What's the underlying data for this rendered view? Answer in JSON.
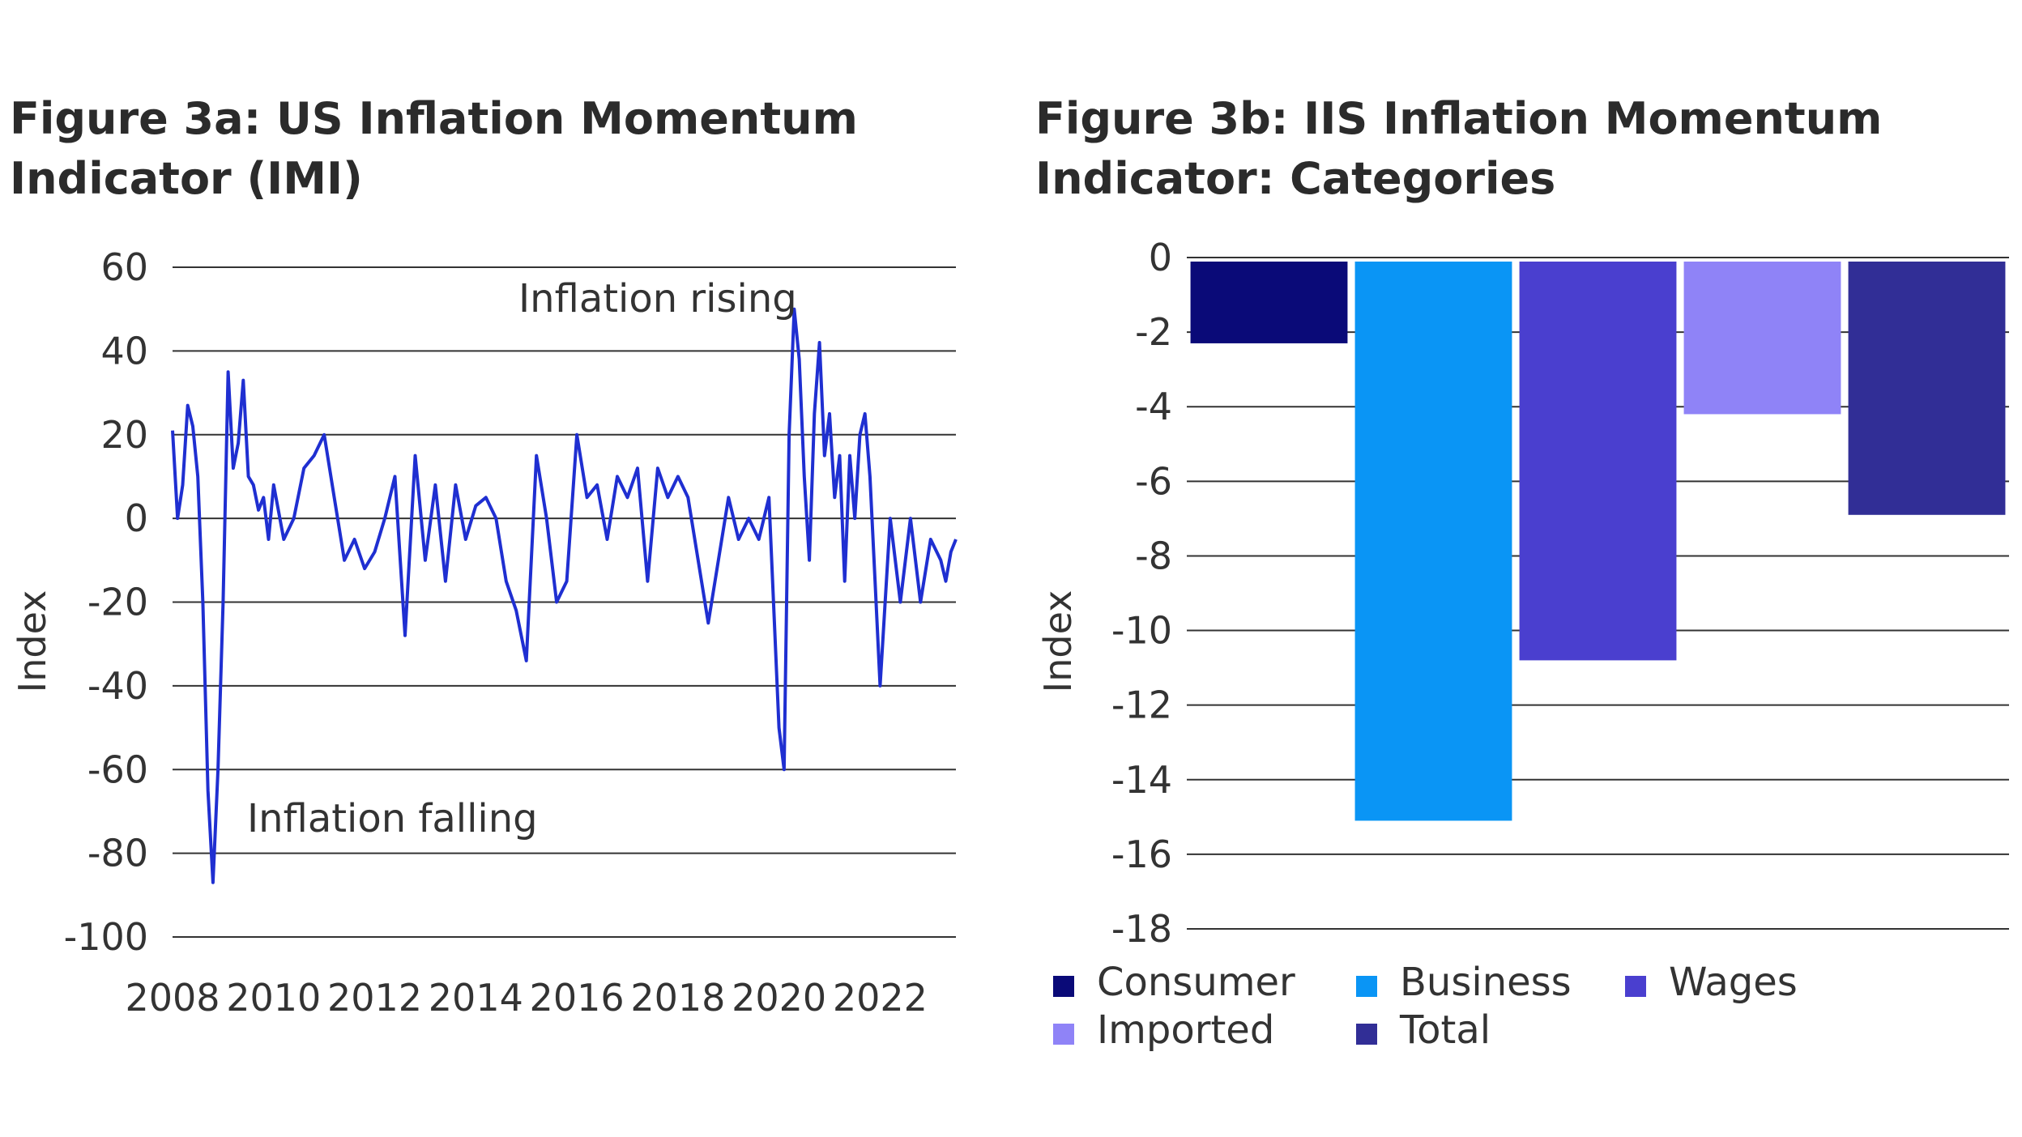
{
  "figure_a": {
    "title_line1": "Figure 3a: US Inflation Momentum",
    "title_line2": "Indicator (IMI)"
  },
  "figure_b": {
    "title_line1": "Figure 3b: IIS Inflation Momentum",
    "title_line2": "Indicator: Categories"
  },
  "chart_data": [
    {
      "type": "line",
      "title": "Figure 3a: US Inflation Momentum Indicator (IMI)",
      "ylabel": "Index",
      "xlabel": "",
      "ylim": [
        -100,
        60
      ],
      "xlim": [
        2008,
        2023.5
      ],
      "yticks": [
        "60",
        "40",
        "20",
        "0",
        "-20",
        "-40",
        "-60",
        "-80",
        "-100"
      ],
      "xticks": [
        "2008",
        "2010",
        "2012",
        "2014",
        "2016",
        "2018",
        "2020",
        "2022"
      ],
      "grid": "horizontal",
      "line_color": "#1f2fd1",
      "annotations": [
        "Inflation rising",
        "Inflation falling"
      ],
      "series": [
        {
          "x": [
            2008.0,
            2008.1,
            2008.2,
            2008.3,
            2008.4,
            2008.5,
            2008.6,
            2008.7,
            2008.8,
            2008.9,
            2009.0,
            2009.1,
            2009.2,
            2009.3,
            2009.4,
            2009.5,
            2009.6,
            2009.7,
            2009.8,
            2009.9,
            2010.0,
            2010.2,
            2010.4,
            2010.6,
            2010.8,
            2011.0,
            2011.2,
            2011.4,
            2011.6,
            2011.8,
            2012.0,
            2012.2,
            2012.4,
            2012.6,
            2012.8,
            2013.0,
            2013.2,
            2013.4,
            2013.6,
            2013.8,
            2014.0,
            2014.2,
            2014.4,
            2014.6,
            2014.8,
            2015.0,
            2015.2,
            2015.4,
            2015.6,
            2015.8,
            2016.0,
            2016.2,
            2016.4,
            2016.6,
            2016.8,
            2017.0,
            2017.2,
            2017.4,
            2017.6,
            2017.8,
            2018.0,
            2018.2,
            2018.4,
            2018.6,
            2018.8,
            2019.0,
            2019.2,
            2019.4,
            2019.6,
            2019.8,
            2020.0,
            2020.1,
            2020.2,
            2020.3,
            2020.4,
            2020.5,
            2020.6,
            2020.7,
            2020.8,
            2020.9,
            2021.0,
            2021.1,
            2021.2,
            2021.3,
            2021.4,
            2021.5,
            2021.6,
            2021.7,
            2021.8,
            2021.9,
            2022.0,
            2022.2,
            2022.4,
            2022.6,
            2022.8,
            2023.0,
            2023.2,
            2023.3,
            2023.4,
            2023.5
          ],
          "y": [
            21,
            0,
            8,
            27,
            22,
            10,
            -20,
            -65,
            -87,
            -60,
            -20,
            35,
            12,
            18,
            33,
            10,
            8,
            2,
            5,
            -5,
            8,
            -5,
            0,
            12,
            15,
            20,
            5,
            -10,
            -5,
            -12,
            -8,
            0,
            10,
            -28,
            15,
            -10,
            8,
            -15,
            8,
            -5,
            3,
            5,
            0,
            -15,
            -22,
            -34,
            15,
            0,
            -20,
            -15,
            20,
            5,
            8,
            -5,
            10,
            5,
            12,
            -15,
            12,
            5,
            10,
            5,
            -10,
            -25,
            -10,
            5,
            -5,
            0,
            -5,
            5,
            -50,
            -60,
            20,
            50,
            38,
            10,
            -10,
            25,
            42,
            15,
            25,
            5,
            15,
            -15,
            15,
            0,
            20,
            25,
            10,
            -15,
            -40,
            0,
            -20,
            0,
            -20,
            -5,
            -10,
            -15,
            -8,
            -5
          ]
        }
      ]
    },
    {
      "type": "bar",
      "title": "Figure 3b: IIS Inflation Momentum Indicator: Categories",
      "ylabel": "Index",
      "xlabel": "",
      "ylim": [
        -18,
        0
      ],
      "yticks": [
        "0",
        "-2",
        "-4",
        "-6",
        "-8",
        "-10",
        "-12",
        "-14",
        "-16",
        "-18"
      ],
      "grid": "horizontal",
      "legend": "bottom",
      "categories": [
        "Consumer",
        "Business",
        "Wages",
        "Imported",
        "Total"
      ],
      "values": [
        -2.3,
        -15.1,
        -10.8,
        -4.2,
        -6.9
      ],
      "colors": [
        "#0a0a78",
        "#0a95f5",
        "#4a3fcf",
        "#8f83f7",
        "#312e96"
      ],
      "legend_entries": [
        "Consumer",
        "Business",
        "Wages",
        "Imported",
        "Total"
      ]
    }
  ]
}
